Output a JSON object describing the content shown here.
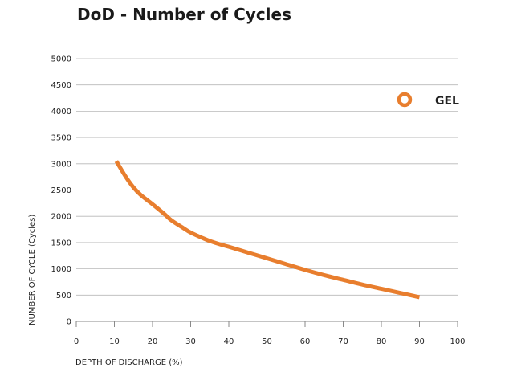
{
  "chart_data": {
    "type": "line",
    "title": "DoD - Number of Cycles",
    "xlabel": "DEPTH OF DISCHARGE (%)",
    "ylabel": "NUMBER OF CYCLE (Cycles)",
    "xlim": [
      0,
      100
    ],
    "ylim": [
      0,
      5000
    ],
    "xticks": [
      0,
      10,
      20,
      30,
      40,
      50,
      60,
      70,
      80,
      90,
      100
    ],
    "yticks": [
      0,
      500,
      1000,
      1500,
      2000,
      2500,
      3000,
      3500,
      4000,
      4500,
      5000
    ],
    "grid": "horizontal",
    "legend_position": "top-right",
    "series": [
      {
        "name": "GEL",
        "color": "#E87E2E",
        "x": [
          10.5,
          13,
          15,
          17,
          20,
          23,
          25,
          28,
          30,
          33,
          35,
          38,
          40,
          45,
          50,
          55,
          60,
          65,
          70,
          75,
          80,
          85,
          90
        ],
        "y": [
          3050,
          2750,
          2550,
          2400,
          2230,
          2050,
          1920,
          1780,
          1690,
          1590,
          1530,
          1460,
          1420,
          1310,
          1200,
          1090,
          980,
          880,
          790,
          700,
          620,
          540,
          460
        ]
      }
    ]
  }
}
